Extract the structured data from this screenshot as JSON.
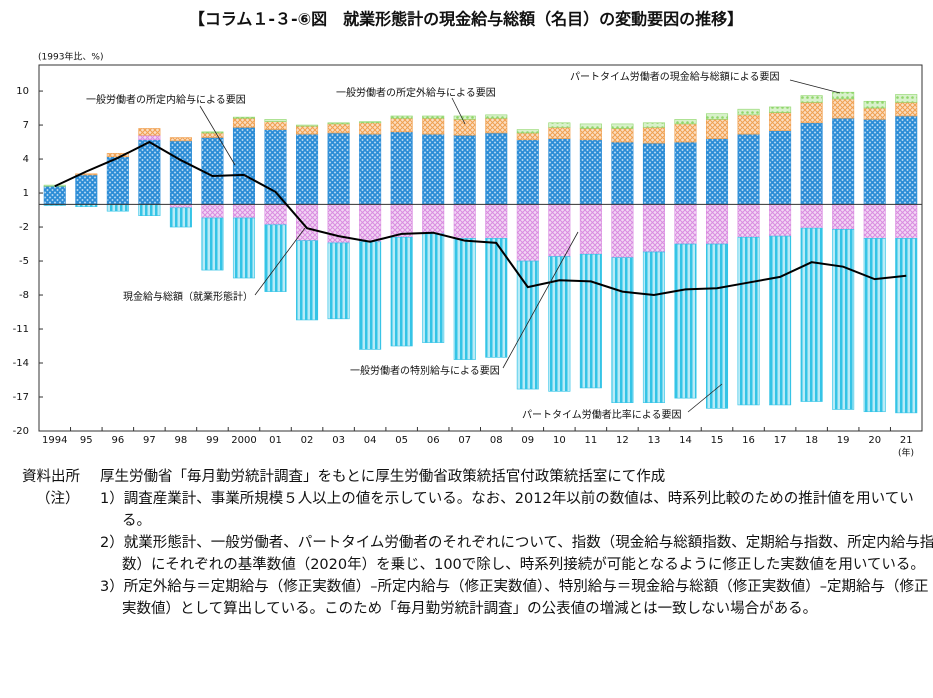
{
  "chart_data": {
    "type": "bar",
    "title": "【コラム１-３-⑥図　就業形態計の現金給与総額（名目）の変動要因の推移】",
    "y_label": "(1993年比、%)",
    "x_label": "(年)",
    "categories": [
      "1994",
      "95",
      "96",
      "97",
      "98",
      "99",
      "2000",
      "01",
      "02",
      "03",
      "04",
      "05",
      "06",
      "07",
      "08",
      "09",
      "10",
      "11",
      "12",
      "13",
      "14",
      "15",
      "16",
      "17",
      "18",
      "19",
      "20",
      "21"
    ],
    "ylim": [
      -20,
      12.3
    ],
    "yticks": [
      10,
      7,
      4,
      1,
      -2,
      -5,
      -8,
      -11,
      -14,
      -17,
      -20
    ],
    "series": [
      {
        "name": "一般労働者の所定内給与による要因",
        "color": "#2b8cd6",
        "values": [
          1.6,
          2.6,
          4.2,
          5.7,
          5.6,
          5.9,
          6.8,
          6.6,
          6.2,
          6.3,
          6.2,
          6.4,
          6.2,
          6.1,
          6.3,
          5.7,
          5.8,
          5.7,
          5.5,
          5.4,
          5.5,
          5.8,
          6.2,
          6.5,
          7.2,
          7.6,
          7.5,
          7.8
        ]
      },
      {
        "name": "一般労働者の特別給与による要因",
        "color": "#d98be0",
        "values": [
          0,
          0,
          0,
          0.4,
          -0.3,
          -1.2,
          -1.2,
          -1.8,
          -3.2,
          -3.4,
          -3.3,
          -2.9,
          -2.6,
          -3.0,
          -3.0,
          -5.0,
          -4.6,
          -4.4,
          -4.7,
          -4.2,
          -3.5,
          -3.5,
          -2.9,
          -2.8,
          -2.1,
          -2.2,
          -3.0,
          -3.0
        ]
      },
      {
        "name": "一般労働者の所定外給与による要因",
        "color": "#f0a050",
        "values": [
          0,
          0.1,
          0.3,
          0.6,
          0.3,
          0.4,
          0.8,
          0.7,
          0.7,
          0.8,
          1.0,
          1.2,
          1.4,
          1.4,
          1.3,
          0.6,
          1.0,
          1.0,
          1.2,
          1.4,
          1.6,
          1.7,
          1.7,
          1.6,
          1.8,
          1.7,
          1.0,
          1.2
        ]
      },
      {
        "name": "パートタイム労働者の現金給与総額による要因",
        "color": "#8fd66a",
        "values": [
          0.1,
          0,
          0,
          0,
          0,
          0.1,
          0.1,
          0.2,
          0.1,
          0.1,
          0.1,
          0.2,
          0.2,
          0.3,
          0.3,
          0.3,
          0.4,
          0.4,
          0.4,
          0.4,
          0.4,
          0.5,
          0.5,
          0.5,
          0.6,
          0.6,
          0.6,
          0.7
        ]
      },
      {
        "name": "パートタイム労働者比率による要因",
        "color": "#35c4e6",
        "values": [
          -0.1,
          -0.2,
          -0.6,
          -1.0,
          -1.7,
          -4.6,
          -5.3,
          -5.9,
          -7.0,
          -6.7,
          -9.5,
          -9.6,
          -9.6,
          -10.7,
          -10.5,
          -11.3,
          -11.9,
          -11.8,
          -12.8,
          -13.3,
          -13.6,
          -14.5,
          -14.8,
          -14.9,
          -15.3,
          -15.9,
          -15.3,
          -15.4
        ]
      },
      {
        "name": "現金給与総額（就業形態計）",
        "color": "#000000",
        "type": "line",
        "values": [
          1.6,
          2.9,
          4.1,
          5.5,
          3.9,
          2.5,
          2.6,
          1.1,
          -2.1,
          -2.8,
          -3.3,
          -2.6,
          -2.5,
          -3.2,
          -3.4,
          -7.3,
          -6.7,
          -6.8,
          -7.7,
          -8.0,
          -7.5,
          -7.4,
          -6.9,
          -6.4,
          -5.1,
          -5.5,
          -6.6,
          -6.3
        ]
      }
    ]
  },
  "notes": {
    "source_label": "資料出所",
    "source": "厚生労働省「毎月勤労統計調査」をもとに厚生労働省政策統括官付政策統括室にて作成",
    "note_label": "（注）",
    "items": [
      "1）調査産業計、事業所規模５人以上の値を示している。なお、2012年以前の数値は、時系列比較のための推計値を用いている。",
      "2）就業形態計、一般労働者、パートタイム労働者のそれぞれについて、指数（現金給与総額指数、定期給与指数、所定内給与指数）にそれぞれの基準数値（2020年）を乗じ、100で除し、時系列接続が可能となるように修正した実数値を用いている。",
      "3）所定外給与＝定期給与（修正実数値）–所定内給与（修正実数値）、特別給与＝現金給与総額（修正実数値）–定期給与（修正実数値）として算出している。このため「毎月勤労統計調査」の公表値の増減とは一致しない場合がある。"
    ]
  }
}
